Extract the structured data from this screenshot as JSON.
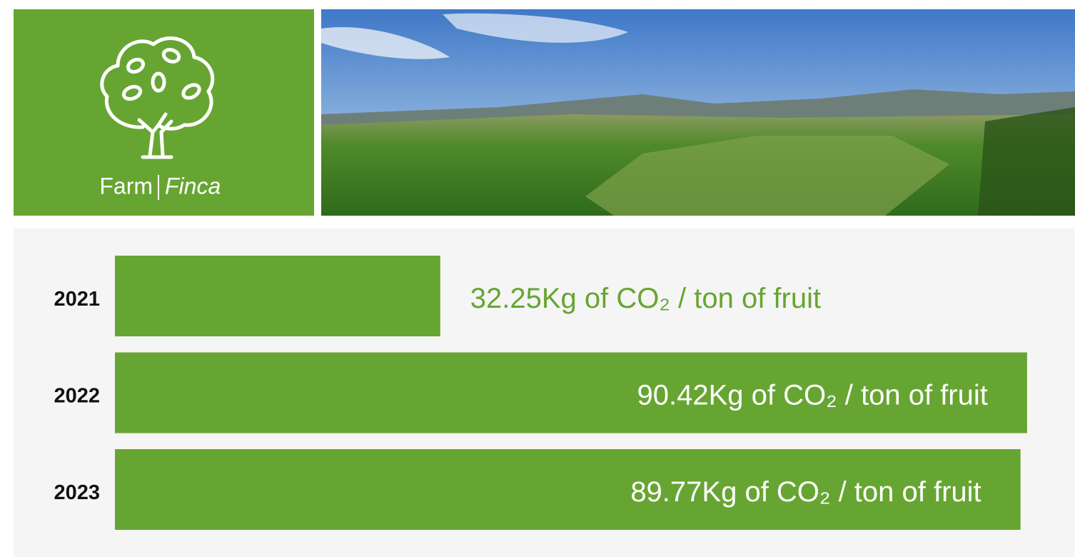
{
  "header": {
    "title": "Farm",
    "subtitle": "Finca"
  },
  "chart_data": {
    "type": "bar",
    "orientation": "horizontal",
    "categories": [
      "2021",
      "2022",
      "2023"
    ],
    "values": [
      32.25,
      90.42,
      89.77
    ],
    "value_labels": [
      "32.25Kg of CO₂ / ton of fruit",
      "90.42Kg of CO₂ / ton of fruit",
      "89.77Kg of CO₂ / ton of fruit"
    ],
    "color": "#67a532",
    "xlim": [
      0,
      90.5
    ]
  }
}
